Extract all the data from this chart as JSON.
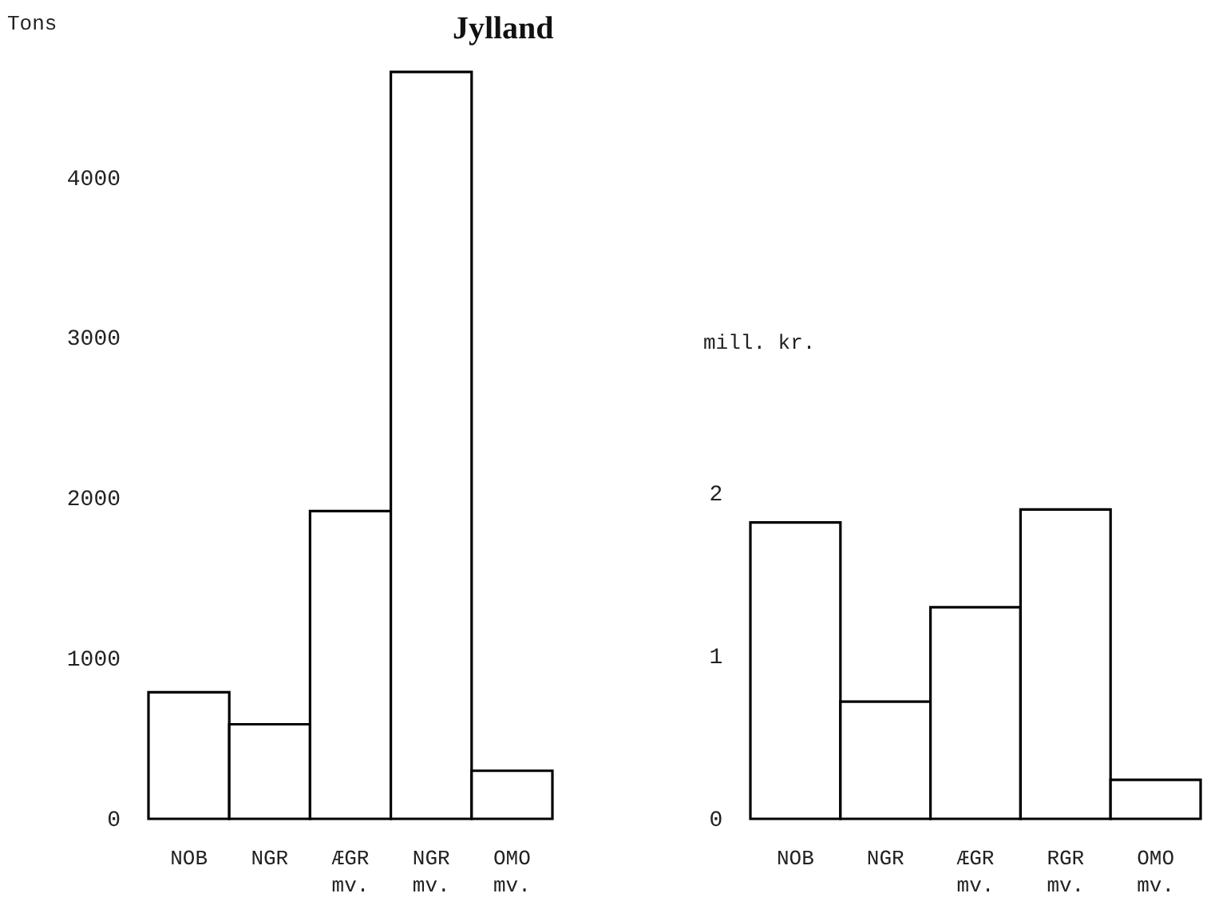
{
  "chart_data": [
    {
      "type": "bar",
      "title": "Jylland",
      "ylabel": "Tons",
      "categories": [
        "NOB",
        "NGR",
        "ÆGR\nmv.",
        "NGR\nmv.",
        "OMO\nmv."
      ],
      "values": [
        790,
        590,
        1920,
        4660,
        300
      ],
      "ylim": [
        0,
        4700
      ],
      "yticks": [
        0,
        1000,
        2000,
        3000,
        4000
      ],
      "grid": false
    },
    {
      "type": "bar",
      "ylabel": "mill. kr.",
      "categories": [
        "NOB",
        "NGR",
        "ÆGR\nmv.",
        "RGR\nmv.",
        "OMO\nmv."
      ],
      "values": [
        1.82,
        0.72,
        1.3,
        1.9,
        0.24
      ],
      "ylim": [
        0,
        2
      ],
      "yticks": [
        0,
        1,
        2
      ],
      "grid": false
    }
  ]
}
